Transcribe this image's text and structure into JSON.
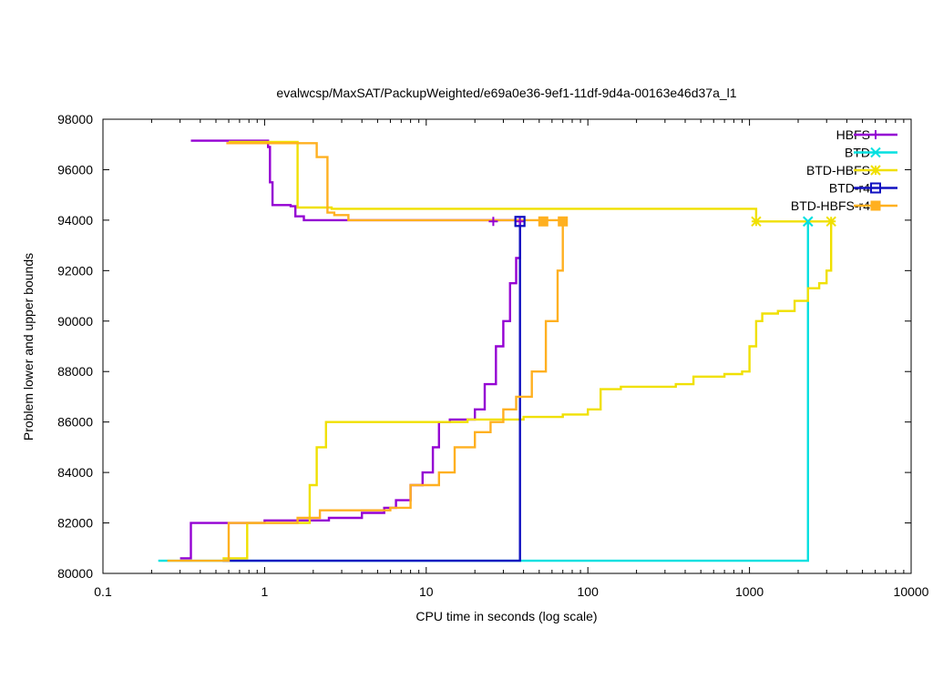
{
  "chart_data": {
    "type": "line",
    "title": "evalwcsp/MaxSAT/PackupWeighted/e69a0e36-9ef1-11df-9d4a-00163e46d37a_l1",
    "xlabel": "CPU time in seconds (log scale)",
    "ylabel": "Problem lower and upper bounds",
    "xscale": "log",
    "xlim": [
      0.1,
      10000
    ],
    "ylim": [
      80000,
      98000
    ],
    "xticks": [
      "0.1",
      "1",
      "10",
      "100",
      "1000",
      "10000"
    ],
    "yticks": [
      "80000",
      "82000",
      "84000",
      "86000",
      "88000",
      "90000",
      "92000",
      "94000",
      "96000",
      "98000"
    ],
    "grid": false,
    "legend_position": "top-right",
    "series": [
      {
        "name": "HBFS",
        "color": "#9400d3",
        "marker": "plus",
        "upper": [
          [
            0.35,
            97150
          ],
          [
            1.0,
            97150
          ],
          [
            1.05,
            96900
          ],
          [
            1.08,
            95500
          ],
          [
            1.12,
            94600
          ],
          [
            1.45,
            94550
          ],
          [
            1.55,
            94150
          ],
          [
            1.75,
            94000
          ],
          [
            38,
            93950
          ]
        ],
        "lower": [
          [
            0.3,
            80600
          ],
          [
            0.35,
            80600
          ],
          [
            0.35,
            82000
          ],
          [
            0.95,
            82000
          ],
          [
            1.0,
            82100
          ],
          [
            2.5,
            82200
          ],
          [
            4.0,
            82400
          ],
          [
            5.5,
            82600
          ],
          [
            6.5,
            82900
          ],
          [
            8.0,
            83500
          ],
          [
            9.5,
            84000
          ],
          [
            11.0,
            85000
          ],
          [
            12.0,
            86000
          ],
          [
            14.0,
            86100
          ],
          [
            20.0,
            86500
          ],
          [
            23.0,
            87500
          ],
          [
            27.0,
            89000
          ],
          [
            30.0,
            90000
          ],
          [
            33.0,
            91500
          ],
          [
            36.0,
            92500
          ],
          [
            38.0,
            93950
          ]
        ],
        "end_marker": [
          26,
          93950
        ]
      },
      {
        "name": "BTD",
        "color": "#00e0e0",
        "marker": "x",
        "upper": [
          [
            2300,
            93950
          ]
        ],
        "lower": [
          [
            0.22,
            80500
          ],
          [
            2300,
            80500
          ],
          [
            2300,
            93950
          ]
        ],
        "end_marker": [
          2300,
          93950
        ]
      },
      {
        "name": "BTD-HBFS",
        "color": "#f0e000",
        "marker": "star",
        "upper": [
          [
            0.6,
            97100
          ],
          [
            1.6,
            97100
          ],
          [
            1.6,
            94500
          ],
          [
            2.6,
            94500
          ],
          [
            2.6,
            94450
          ],
          [
            1100,
            94450
          ],
          [
            1100,
            93950
          ],
          [
            3200,
            93950
          ]
        ],
        "lower": [
          [
            0.55,
            80600
          ],
          [
            0.78,
            80600
          ],
          [
            0.78,
            82000
          ],
          [
            1.8,
            82000
          ],
          [
            1.9,
            83500
          ],
          [
            2.1,
            85000
          ],
          [
            2.4,
            86000
          ],
          [
            18,
            86100
          ],
          [
            40,
            86200
          ],
          [
            70,
            86300
          ],
          [
            100,
            86500
          ],
          [
            120,
            87300
          ],
          [
            160,
            87400
          ],
          [
            350,
            87500
          ],
          [
            450,
            87800
          ],
          [
            700,
            87900
          ],
          [
            900,
            88000
          ],
          [
            1000,
            89000
          ],
          [
            1100,
            90000
          ],
          [
            1200,
            90300
          ],
          [
            1500,
            90400
          ],
          [
            1900,
            90800
          ],
          [
            2300,
            91300
          ],
          [
            2700,
            91500
          ],
          [
            3000,
            92000
          ],
          [
            3200,
            93950
          ]
        ],
        "end_marker": [
          1100,
          93950
        ]
      },
      {
        "name": "BTD-r4",
        "color": "#1010c0",
        "marker": "square-open",
        "upper": [
          [
            38,
            93950
          ]
        ],
        "lower": [
          [
            0.55,
            80500
          ],
          [
            38,
            80500
          ],
          [
            38,
            93950
          ]
        ],
        "end_marker": [
          38,
          93950
        ]
      },
      {
        "name": "BTD-HBFS-r4",
        "color": "#ffb020",
        "marker": "square-filled",
        "upper": [
          [
            0.58,
            97050
          ],
          [
            2.05,
            97050
          ],
          [
            2.1,
            96500
          ],
          [
            2.45,
            96450
          ],
          [
            2.45,
            94300
          ],
          [
            2.7,
            94200
          ],
          [
            3.3,
            94000
          ],
          [
            70,
            93950
          ]
        ],
        "lower": [
          [
            0.25,
            80500
          ],
          [
            0.6,
            80500
          ],
          [
            0.6,
            82000
          ],
          [
            1.2,
            82000
          ],
          [
            1.6,
            82200
          ],
          [
            2.2,
            82500
          ],
          [
            6.0,
            82600
          ],
          [
            8.0,
            83500
          ],
          [
            12.0,
            84000
          ],
          [
            15.0,
            85000
          ],
          [
            20.0,
            85600
          ],
          [
            25.0,
            86000
          ],
          [
            30.0,
            86500
          ],
          [
            36.0,
            87000
          ],
          [
            45.0,
            88000
          ],
          [
            55.0,
            90000
          ],
          [
            65.0,
            92000
          ],
          [
            70.0,
            93950
          ]
        ],
        "end_marker": [
          53,
          93950
        ]
      }
    ]
  }
}
